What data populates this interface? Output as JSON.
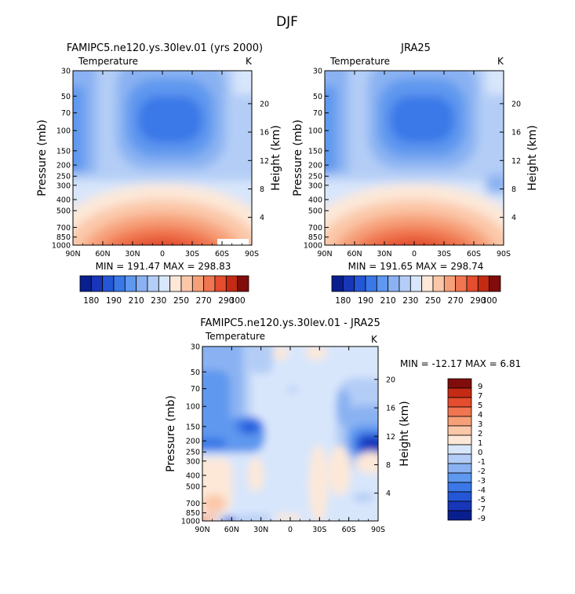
{
  "figure_title": "DJF",
  "colors": {
    "temp_palette": [
      "#0a1f8f",
      "#1836b8",
      "#2457d6",
      "#3a78e8",
      "#5e98ef",
      "#8ab2f2",
      "#b3cdf6",
      "#d8e6fb",
      "#fde8d8",
      "#fbc7a9",
      "#f6a079",
      "#ef7650",
      "#e44d2d",
      "#c42a14",
      "#800d0b"
    ],
    "diff_palette": [
      "#0a1f8f",
      "#1836b8",
      "#2457d6",
      "#3a78e8",
      "#5e98ef",
      "#8ab2f2",
      "#b3cdf6",
      "#d8e6fb",
      "#fde8d8",
      "#fbc7a9",
      "#f6a079",
      "#ef7650",
      "#e44d2d",
      "#c42a14",
      "#800d0b"
    ]
  },
  "chart_data": [
    {
      "type": "contour",
      "id": "model",
      "title": "FAMIPC5.ne120.ys.30lev.01 (yrs 2000)",
      "left_label": "Temperature",
      "units": "K",
      "ylabel": "Pressure (mb)",
      "y2label": "Height (km)",
      "x_ticks": [
        "90N",
        "60N",
        "30N",
        "0",
        "30S",
        "60S",
        "90S"
      ],
      "y_ticks": [
        "30",
        "50",
        "70",
        "100",
        "150",
        "200",
        "250",
        "300",
        "400",
        "500",
        "700",
        "850",
        "1000"
      ],
      "y2_ticks": [
        "20",
        "16",
        "12",
        "8",
        "4"
      ],
      "stats": "MIN = 191.47   MAX = 298.83",
      "colorbar_labels": [
        "180",
        "190",
        "210",
        "230",
        "250",
        "270",
        "290",
        "300"
      ],
      "ylim": [
        1000,
        30
      ],
      "xlim": [
        90,
        -90
      ]
    },
    {
      "type": "contour",
      "id": "obs",
      "title": "JRA25",
      "left_label": "Temperature",
      "units": "K",
      "ylabel": "Pressure (mb)",
      "y2label": "Height (km)",
      "x_ticks": [
        "90N",
        "60N",
        "30N",
        "0",
        "30S",
        "60S",
        "90S"
      ],
      "y_ticks": [
        "30",
        "50",
        "70",
        "100",
        "150",
        "200",
        "250",
        "300",
        "400",
        "500",
        "700",
        "850",
        "1000"
      ],
      "y2_ticks": [
        "20",
        "16",
        "12",
        "8",
        "4"
      ],
      "stats": "MIN = 191.65   MAX = 298.74",
      "colorbar_labels": [
        "180",
        "190",
        "210",
        "230",
        "250",
        "270",
        "290",
        "300"
      ],
      "ylim": [
        1000,
        30
      ],
      "xlim": [
        90,
        -90
      ]
    },
    {
      "type": "contour",
      "id": "diff",
      "title": "FAMIPC5.ne120.ys.30lev.01 - JRA25",
      "left_label": "Temperature",
      "units": "K",
      "ylabel": "Pressure (mb)",
      "y2label": "Height (km)",
      "x_ticks": [
        "90N",
        "60N",
        "30N",
        "0",
        "30S",
        "60S",
        "90S"
      ],
      "y_ticks": [
        "30",
        "50",
        "70",
        "100",
        "150",
        "200",
        "250",
        "300",
        "400",
        "500",
        "700",
        "850",
        "1000"
      ],
      "y2_ticks": [
        "20",
        "16",
        "12",
        "8",
        "4"
      ],
      "stats": "MIN = -12.17   MAX =    6.81",
      "colorbar_labels": [
        "9",
        "7",
        "5",
        "4",
        "3",
        "2",
        "1",
        "0",
        "-1",
        "-2",
        "-3",
        "-4",
        "-5",
        "-7",
        "-9"
      ],
      "ylim": [
        1000,
        30
      ],
      "xlim": [
        90,
        -90
      ]
    }
  ]
}
